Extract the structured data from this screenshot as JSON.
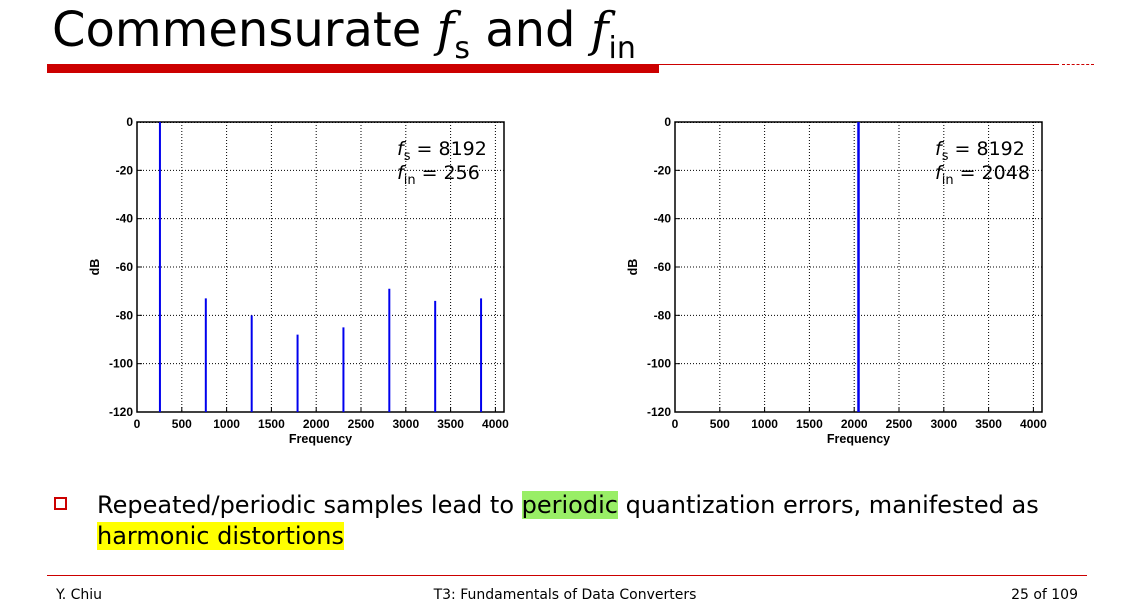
{
  "title": {
    "main": "Commensurate ",
    "f1": "f",
    "s1": "s",
    "and": " and ",
    "f2": "f",
    "s2": "in"
  },
  "chart_data": [
    {
      "type": "bar",
      "xlabel": "Frequency",
      "ylabel": "dB",
      "xlim": [
        0,
        4096
      ],
      "ylim": [
        -120,
        0
      ],
      "xticks": [
        0,
        500,
        1000,
        1500,
        2000,
        2500,
        3000,
        3500,
        4000
      ],
      "yticks": [
        0,
        -20,
        -40,
        -60,
        -80,
        -100,
        -120
      ],
      "grid": true,
      "annotation": {
        "fs_label": "f",
        "fs_sub": "s",
        "fs_value": " = 8192",
        "fin_label": "f",
        "fin_sub": "in",
        "fin_value": " = 256"
      },
      "x": [
        256,
        768,
        1280,
        1792,
        2304,
        2816,
        3328,
        3840
      ],
      "values": [
        0,
        -73,
        -80,
        -88,
        -85,
        -69,
        -74,
        -73
      ]
    },
    {
      "type": "bar",
      "xlabel": "Frequency",
      "ylabel": "dB",
      "xlim": [
        0,
        4096
      ],
      "ylim": [
        -120,
        0
      ],
      "xticks": [
        0,
        500,
        1000,
        1500,
        2000,
        2500,
        3000,
        3500,
        4000
      ],
      "yticks": [
        0,
        -20,
        -40,
        -60,
        -80,
        -100,
        -120
      ],
      "grid": true,
      "annotation": {
        "fs_label": "f",
        "fs_sub": "s",
        "fs_value": " = 8192",
        "fin_label": "f",
        "fin_sub": "in",
        "fin_value": " = 2048"
      },
      "x": [
        2048
      ],
      "values": [
        0
      ]
    }
  ],
  "bullet": {
    "pre": "Repeated/periodic samples lead to ",
    "highlight1": "periodic",
    "mid": " quantization errors, manifested as ",
    "highlight2": "harmonic distortions"
  },
  "footer": {
    "author": "Y. Chiu",
    "course": "T3: Fundamentals of Data Converters",
    "page": "25 of 109"
  },
  "colors": {
    "accent": "#cc0000",
    "stem": "#0000ee",
    "highlight1": "#99ee66",
    "highlight2": "#ffff00"
  }
}
